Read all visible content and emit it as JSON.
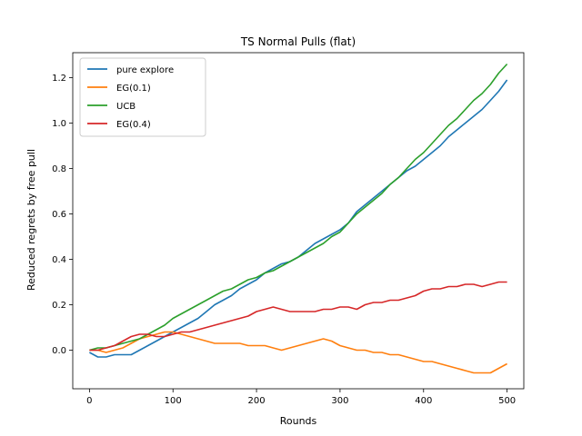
{
  "chart_data": {
    "type": "line",
    "title": "TS Normal Pulls (flat)",
    "xlabel": "Rounds",
    "ylabel": "Reduced regrets by free pull",
    "xlim": [
      -20,
      520
    ],
    "ylim": [
      -0.17,
      1.31
    ],
    "xticks": [
      0,
      100,
      200,
      300,
      400,
      500
    ],
    "yticks": [
      0.0,
      0.2,
      0.4,
      0.6,
      0.8,
      1.0,
      1.2
    ],
    "grid": false,
    "legend_position": "top-left",
    "series": [
      {
        "name": "pure explore",
        "color": "#1f77b4",
        "x": [
          0,
          10,
          20,
          30,
          40,
          50,
          60,
          70,
          80,
          90,
          100,
          110,
          120,
          130,
          140,
          150,
          160,
          170,
          180,
          190,
          200,
          210,
          220,
          230,
          240,
          250,
          260,
          270,
          280,
          290,
          300,
          310,
          320,
          330,
          340,
          350,
          360,
          370,
          380,
          390,
          400,
          410,
          420,
          430,
          440,
          450,
          460,
          470,
          480,
          490,
          500
        ],
        "y": [
          -0.01,
          -0.03,
          -0.03,
          -0.02,
          -0.02,
          -0.02,
          0.0,
          0.02,
          0.04,
          0.06,
          0.08,
          0.1,
          0.12,
          0.14,
          0.17,
          0.2,
          0.22,
          0.24,
          0.27,
          0.29,
          0.31,
          0.34,
          0.36,
          0.38,
          0.39,
          0.41,
          0.44,
          0.47,
          0.49,
          0.51,
          0.53,
          0.56,
          0.61,
          0.64,
          0.67,
          0.7,
          0.73,
          0.76,
          0.79,
          0.81,
          0.84,
          0.87,
          0.9,
          0.94,
          0.97,
          1.0,
          1.03,
          1.06,
          1.1,
          1.14,
          1.19
        ]
      },
      {
        "name": "EG(0.1)",
        "color": "#ff7f0e",
        "x": [
          0,
          10,
          20,
          30,
          40,
          50,
          60,
          70,
          80,
          90,
          100,
          110,
          120,
          130,
          140,
          150,
          160,
          170,
          180,
          190,
          200,
          210,
          220,
          230,
          240,
          250,
          260,
          270,
          280,
          290,
          300,
          310,
          320,
          330,
          340,
          350,
          360,
          370,
          380,
          390,
          400,
          410,
          420,
          430,
          440,
          450,
          460,
          470,
          480,
          490,
          500
        ],
        "y": [
          0.0,
          0.0,
          -0.01,
          0.0,
          0.01,
          0.03,
          0.05,
          0.06,
          0.07,
          0.08,
          0.08,
          0.07,
          0.06,
          0.05,
          0.04,
          0.03,
          0.03,
          0.03,
          0.03,
          0.02,
          0.02,
          0.02,
          0.01,
          0.0,
          0.01,
          0.02,
          0.03,
          0.04,
          0.05,
          0.04,
          0.02,
          0.01,
          0.0,
          0.0,
          -0.01,
          -0.01,
          -0.02,
          -0.02,
          -0.03,
          -0.04,
          -0.05,
          -0.05,
          -0.06,
          -0.07,
          -0.08,
          -0.09,
          -0.1,
          -0.1,
          -0.1,
          -0.08,
          -0.06
        ]
      },
      {
        "name": "UCB",
        "color": "#2ca02c",
        "x": [
          0,
          10,
          20,
          30,
          40,
          50,
          60,
          70,
          80,
          90,
          100,
          110,
          120,
          130,
          140,
          150,
          160,
          170,
          180,
          190,
          200,
          210,
          220,
          230,
          240,
          250,
          260,
          270,
          280,
          290,
          300,
          310,
          320,
          330,
          340,
          350,
          360,
          370,
          380,
          390,
          400,
          410,
          420,
          430,
          440,
          450,
          460,
          470,
          480,
          490,
          500
        ],
        "y": [
          0.0,
          0.01,
          0.01,
          0.02,
          0.03,
          0.04,
          0.05,
          0.07,
          0.09,
          0.11,
          0.14,
          0.16,
          0.18,
          0.2,
          0.22,
          0.24,
          0.26,
          0.27,
          0.29,
          0.31,
          0.32,
          0.34,
          0.35,
          0.37,
          0.39,
          0.41,
          0.43,
          0.45,
          0.47,
          0.5,
          0.52,
          0.56,
          0.6,
          0.63,
          0.66,
          0.69,
          0.73,
          0.76,
          0.8,
          0.84,
          0.87,
          0.91,
          0.95,
          0.99,
          1.02,
          1.06,
          1.1,
          1.13,
          1.17,
          1.22,
          1.26
        ]
      },
      {
        "name": "EG(0.4)",
        "color": "#d62728",
        "x": [
          0,
          10,
          20,
          30,
          40,
          50,
          60,
          70,
          80,
          90,
          100,
          110,
          120,
          130,
          140,
          150,
          160,
          170,
          180,
          190,
          200,
          210,
          220,
          230,
          240,
          250,
          260,
          270,
          280,
          290,
          300,
          310,
          320,
          330,
          340,
          350,
          360,
          370,
          380,
          390,
          400,
          410,
          420,
          430,
          440,
          450,
          460,
          470,
          480,
          490,
          500
        ],
        "y": [
          0.0,
          0.0,
          0.01,
          0.02,
          0.04,
          0.06,
          0.07,
          0.07,
          0.06,
          0.06,
          0.07,
          0.08,
          0.08,
          0.09,
          0.1,
          0.11,
          0.12,
          0.13,
          0.14,
          0.15,
          0.17,
          0.18,
          0.19,
          0.18,
          0.17,
          0.17,
          0.17,
          0.17,
          0.18,
          0.18,
          0.19,
          0.19,
          0.18,
          0.2,
          0.21,
          0.21,
          0.22,
          0.22,
          0.23,
          0.24,
          0.26,
          0.27,
          0.27,
          0.28,
          0.28,
          0.29,
          0.29,
          0.28,
          0.29,
          0.3,
          0.3
        ]
      }
    ]
  }
}
